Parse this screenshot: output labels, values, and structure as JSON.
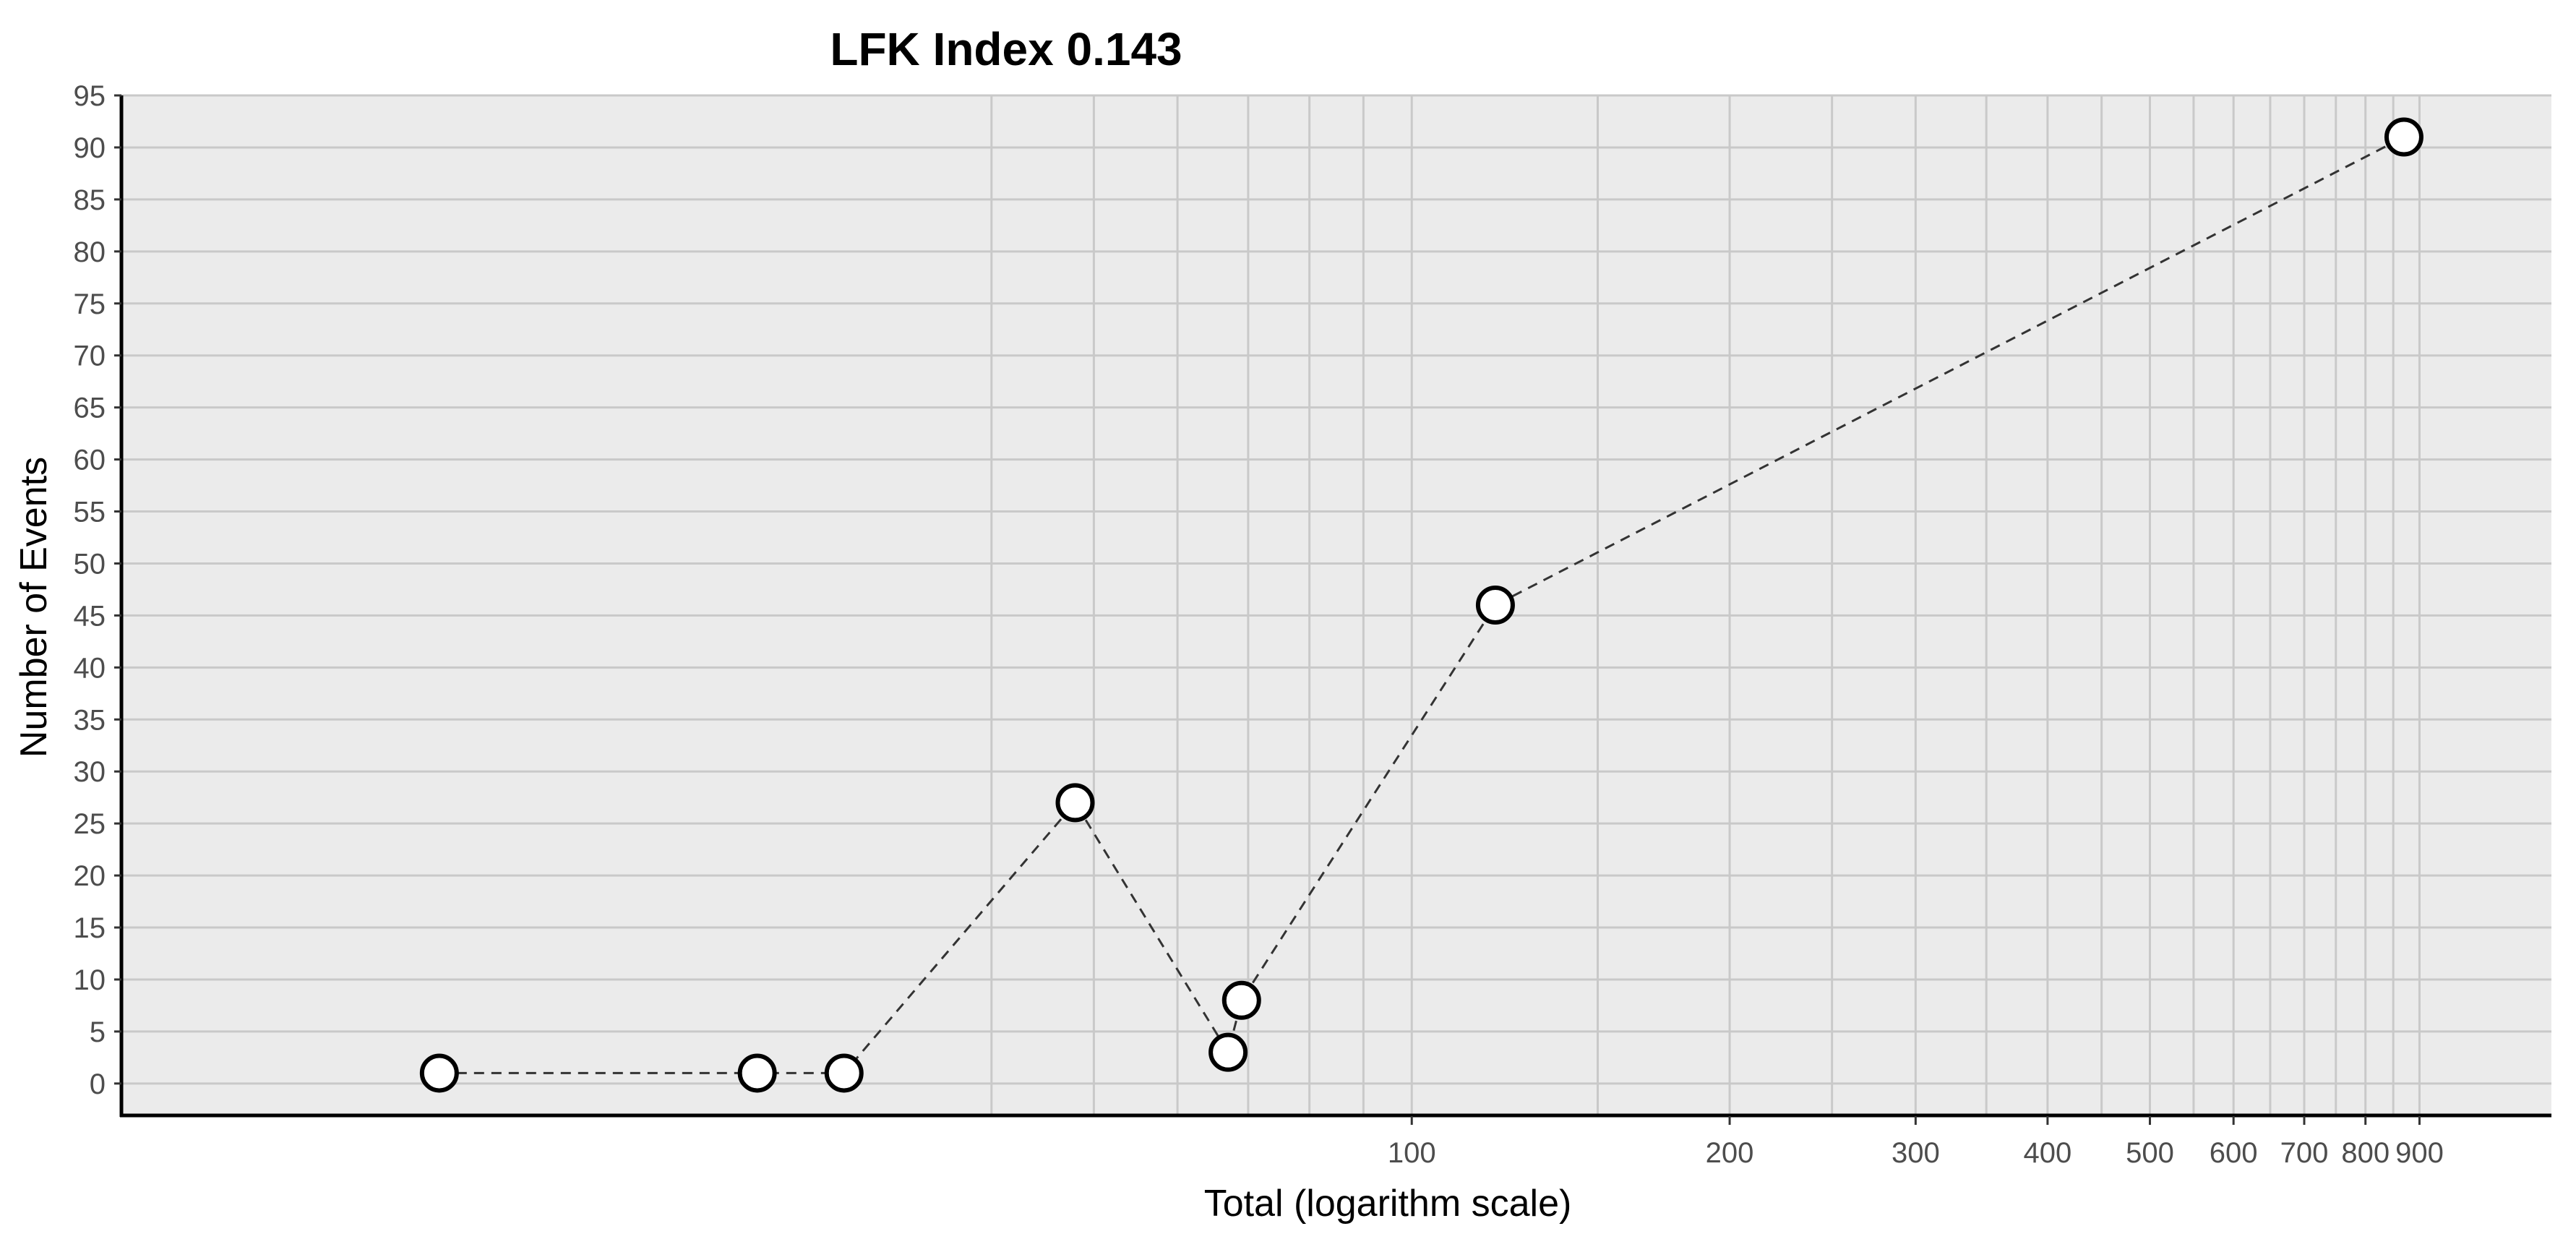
{
  "chart_data": {
    "type": "line",
    "title": "LFK Index 0.143",
    "xlabel": "Total (logarithm scale)",
    "ylabel": "Number of Events",
    "x_scale": "log",
    "xlim": [
      6,
      1200
    ],
    "ylim": [
      -3,
      95
    ],
    "x_ticks": [
      100,
      200,
      300,
      400,
      500,
      600,
      700,
      800,
      900
    ],
    "x_tick_labels": [
      "100",
      "200",
      "300",
      "400",
      "500",
      "600",
      "700",
      "800",
      "900"
    ],
    "x_minor_gridlines": [
      40,
      50,
      60,
      70,
      80,
      90,
      100,
      150,
      200,
      250,
      300,
      350,
      400,
      450,
      500,
      550,
      600,
      650,
      700,
      750,
      800,
      850,
      900
    ],
    "y_ticks": [
      0,
      5,
      10,
      15,
      20,
      25,
      30,
      35,
      40,
      45,
      50,
      55,
      60,
      65,
      70,
      75,
      80,
      85,
      90,
      95
    ],
    "y_tick_labels": [
      "0",
      "5",
      "10",
      "15",
      "20",
      "25",
      "30",
      "35",
      "40",
      "45",
      "50",
      "55",
      "60",
      "65",
      "70",
      "75",
      "80",
      "85",
      "90",
      "95"
    ],
    "grid": true,
    "legend": "none",
    "line_style": "dashed",
    "marker": "open-circle",
    "series": [
      {
        "x": [
          12,
          24,
          29,
          48,
          67,
          69,
          120,
          870
        ],
        "y": [
          1,
          1,
          1,
          27,
          3,
          8,
          46,
          91
        ]
      }
    ]
  },
  "colors": {
    "panel_background": "#ebebeb",
    "grid_line": "#c9c9c9",
    "axis_line": "#000000",
    "tick_text": "#4d4d4d",
    "series_line": "#333333",
    "marker_fill": "#ffffff",
    "marker_stroke": "#000000"
  }
}
